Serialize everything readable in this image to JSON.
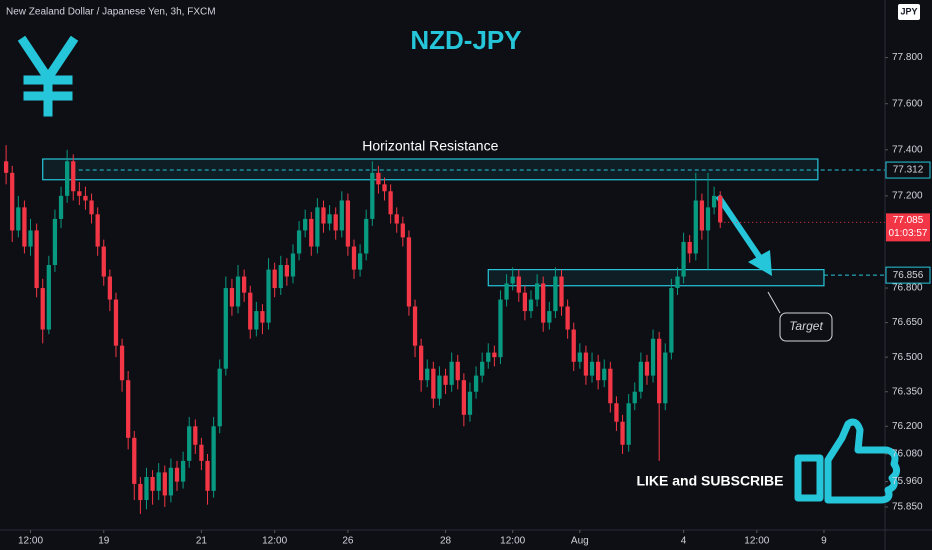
{
  "chart_data": {
    "type": "candlestick",
    "title": "NZD-JPY",
    "symbol_info": "New Zealand Dollar / Japanese Yen, 3h, FXCM",
    "currency": "JPY",
    "up_color": "#089981",
    "down_color": "#f23645",
    "accent_color": "#26c6da",
    "grid": false,
    "xlim": [
      -1,
      144
    ],
    "ylim": [
      75.75,
      78.05
    ],
    "yticks": [
      {
        "value": 77.8,
        "label": "77.800"
      },
      {
        "value": 77.6,
        "label": "77.600"
      },
      {
        "value": 77.4,
        "label": "77.400"
      },
      {
        "value": 77.2,
        "label": "77.200"
      },
      {
        "value": 76.8,
        "label": "76.800"
      },
      {
        "value": 76.65,
        "label": "76.650"
      },
      {
        "value": 76.5,
        "label": "76.500"
      },
      {
        "value": 76.35,
        "label": "76.350"
      },
      {
        "value": 76.2,
        "label": "76.200"
      },
      {
        "value": 76.08,
        "label": "76.080"
      },
      {
        "value": 75.96,
        "label": "75.960"
      },
      {
        "value": 75.85,
        "label": "75.850"
      }
    ],
    "xticks": [
      {
        "value": 4,
        "label": "12:00"
      },
      {
        "value": 16,
        "label": "19"
      },
      {
        "value": 32,
        "label": "21"
      },
      {
        "value": 44,
        "label": "12:00"
      },
      {
        "value": 56,
        "label": "26"
      },
      {
        "value": 72,
        "label": "28"
      },
      {
        "value": 83,
        "label": "12:00"
      },
      {
        "value": 94,
        "label": "Aug"
      },
      {
        "value": 111,
        "label": "4"
      },
      {
        "value": 123,
        "label": "12:00"
      },
      {
        "value": 134,
        "label": "9"
      }
    ],
    "x": [
      0,
      1,
      2,
      3,
      4,
      5,
      6,
      7,
      8,
      9,
      10,
      11,
      12,
      13,
      14,
      15,
      16,
      17,
      18,
      19,
      20,
      21,
      22,
      23,
      24,
      25,
      26,
      27,
      28,
      29,
      30,
      31,
      32,
      33,
      34,
      35,
      36,
      37,
      38,
      39,
      40,
      41,
      42,
      43,
      44,
      45,
      46,
      47,
      48,
      49,
      50,
      51,
      52,
      53,
      54,
      55,
      56,
      57,
      58,
      59,
      60,
      61,
      62,
      63,
      64,
      65,
      66,
      67,
      68,
      69,
      70,
      71,
      72,
      73,
      74,
      75,
      76,
      77,
      78,
      79,
      80,
      81,
      82,
      83,
      84,
      85,
      86,
      87,
      88,
      89,
      90,
      91,
      92,
      93,
      94,
      95,
      96,
      97,
      98,
      99,
      100,
      101,
      102,
      103,
      104,
      105,
      106,
      107,
      108,
      109,
      110,
      111,
      112,
      113,
      114,
      115,
      116,
      117
    ],
    "ohlc": [
      [
        77.35,
        77.42,
        77.25,
        77.3
      ],
      [
        77.3,
        77.33,
        77.0,
        77.05
      ],
      [
        77.05,
        77.2,
        77.02,
        77.15
      ],
      [
        77.15,
        77.18,
        76.95,
        76.98
      ],
      [
        76.98,
        77.1,
        76.94,
        77.05
      ],
      [
        77.05,
        77.08,
        76.76,
        76.8
      ],
      [
        76.8,
        76.84,
        76.56,
        76.62
      ],
      [
        76.62,
        76.94,
        76.6,
        76.9
      ],
      [
        76.9,
        77.14,
        76.87,
        77.1
      ],
      [
        77.1,
        77.24,
        77.06,
        77.2
      ],
      [
        77.2,
        77.4,
        77.17,
        77.35
      ],
      [
        77.35,
        77.38,
        77.18,
        77.22
      ],
      [
        77.22,
        77.26,
        77.16,
        77.2
      ],
      [
        77.2,
        77.24,
        77.14,
        77.18
      ],
      [
        77.18,
        77.21,
        77.08,
        77.12
      ],
      [
        77.12,
        77.15,
        76.94,
        76.98
      ],
      [
        76.98,
        77.01,
        76.81,
        76.85
      ],
      [
        76.85,
        76.88,
        76.7,
        76.75
      ],
      [
        76.75,
        76.78,
        76.5,
        76.55
      ],
      [
        76.55,
        76.58,
        76.35,
        76.4
      ],
      [
        76.4,
        76.44,
        76.1,
        76.15
      ],
      [
        76.15,
        76.18,
        75.88,
        75.95
      ],
      [
        75.95,
        75.98,
        75.82,
        75.88
      ],
      [
        75.88,
        76.02,
        75.84,
        75.98
      ],
      [
        75.98,
        76.01,
        75.86,
        75.92
      ],
      [
        75.92,
        76.04,
        75.88,
        76.0
      ],
      [
        76.0,
        76.03,
        75.85,
        75.9
      ],
      [
        75.9,
        76.06,
        75.87,
        76.02
      ],
      [
        76.02,
        76.05,
        75.92,
        75.96
      ],
      [
        75.96,
        76.09,
        75.93,
        76.05
      ],
      [
        76.05,
        76.24,
        76.02,
        76.2
      ],
      [
        76.2,
        76.23,
        76.08,
        76.12
      ],
      [
        76.12,
        76.15,
        76.01,
        76.05
      ],
      [
        76.05,
        76.08,
        75.86,
        75.92
      ],
      [
        75.92,
        76.24,
        75.89,
        76.2
      ],
      [
        76.2,
        76.49,
        76.17,
        76.45
      ],
      [
        76.45,
        76.85,
        76.42,
        76.8
      ],
      [
        76.8,
        76.84,
        76.68,
        76.72
      ],
      [
        76.72,
        76.9,
        76.69,
        76.85
      ],
      [
        76.85,
        76.88,
        76.74,
        76.78
      ],
      [
        76.78,
        76.81,
        76.58,
        76.62
      ],
      [
        76.62,
        76.74,
        76.59,
        76.7
      ],
      [
        76.7,
        76.73,
        76.6,
        76.65
      ],
      [
        76.65,
        76.93,
        76.62,
        76.88
      ],
      [
        76.88,
        76.91,
        76.76,
        76.8
      ],
      [
        76.8,
        76.94,
        76.77,
        76.9
      ],
      [
        76.9,
        76.93,
        76.81,
        76.85
      ],
      [
        76.85,
        76.99,
        76.82,
        76.95
      ],
      [
        76.95,
        77.09,
        76.92,
        77.05
      ],
      [
        77.05,
        77.14,
        77.02,
        77.1
      ],
      [
        77.1,
        77.13,
        76.94,
        76.98
      ],
      [
        76.98,
        77.19,
        76.95,
        77.15
      ],
      [
        77.15,
        77.18,
        77.04,
        77.08
      ],
      [
        77.08,
        77.16,
        77.05,
        77.12
      ],
      [
        77.12,
        77.15,
        77.01,
        77.05
      ],
      [
        77.05,
        77.22,
        77.02,
        77.18
      ],
      [
        77.18,
        77.21,
        76.94,
        76.98
      ],
      [
        76.98,
        77.01,
        76.84,
        76.88
      ],
      [
        76.88,
        76.99,
        76.85,
        76.95
      ],
      [
        76.95,
        77.14,
        76.92,
        77.1
      ],
      [
        77.1,
        77.35,
        77.07,
        77.3
      ],
      [
        77.3,
        77.33,
        77.21,
        77.25
      ],
      [
        77.25,
        77.28,
        77.18,
        77.22
      ],
      [
        77.22,
        77.25,
        77.08,
        77.12
      ],
      [
        77.12,
        77.15,
        77.04,
        77.08
      ],
      [
        77.08,
        77.11,
        76.98,
        77.02
      ],
      [
        77.02,
        77.05,
        76.68,
        76.72
      ],
      [
        76.72,
        76.75,
        76.5,
        76.55
      ],
      [
        76.55,
        76.58,
        76.35,
        76.4
      ],
      [
        76.4,
        76.49,
        76.37,
        76.45
      ],
      [
        76.45,
        76.48,
        76.28,
        76.32
      ],
      [
        76.32,
        76.46,
        76.29,
        76.42
      ],
      [
        76.42,
        76.45,
        76.34,
        76.38
      ],
      [
        76.38,
        76.52,
        76.35,
        76.48
      ],
      [
        76.48,
        76.51,
        76.36,
        76.4
      ],
      [
        76.4,
        76.43,
        76.2,
        76.25
      ],
      [
        76.25,
        76.39,
        76.22,
        76.35
      ],
      [
        76.35,
        76.46,
        76.32,
        76.42
      ],
      [
        76.42,
        76.52,
        76.39,
        76.48
      ],
      [
        76.48,
        76.56,
        76.45,
        76.52
      ],
      [
        76.52,
        76.55,
        76.46,
        76.5
      ],
      [
        76.5,
        76.79,
        76.47,
        76.75
      ],
      [
        76.75,
        76.86,
        76.72,
        76.82
      ],
      [
        76.82,
        76.89,
        76.79,
        76.85
      ],
      [
        76.85,
        76.88,
        76.74,
        76.78
      ],
      [
        76.78,
        76.81,
        76.66,
        76.7
      ],
      [
        76.7,
        76.79,
        76.67,
        76.75
      ],
      [
        76.75,
        76.86,
        76.72,
        76.82
      ],
      [
        76.82,
        76.85,
        76.61,
        76.65
      ],
      [
        76.65,
        76.74,
        76.62,
        76.7
      ],
      [
        76.7,
        76.89,
        76.67,
        76.85
      ],
      [
        76.85,
        76.88,
        76.68,
        76.72
      ],
      [
        76.72,
        76.75,
        76.58,
        76.62
      ],
      [
        76.62,
        76.65,
        76.44,
        76.48
      ],
      [
        76.48,
        76.56,
        76.45,
        76.52
      ],
      [
        76.52,
        76.55,
        76.38,
        76.42
      ],
      [
        76.42,
        76.52,
        76.39,
        76.48
      ],
      [
        76.48,
        76.51,
        76.36,
        76.4
      ],
      [
        76.4,
        76.49,
        76.37,
        76.45
      ],
      [
        76.45,
        76.48,
        76.26,
        76.3
      ],
      [
        76.3,
        76.33,
        76.18,
        76.22
      ],
      [
        76.22,
        76.25,
        76.08,
        76.12
      ],
      [
        76.12,
        76.34,
        76.09,
        76.3
      ],
      [
        76.3,
        76.39,
        76.27,
        76.35
      ],
      [
        76.35,
        76.52,
        76.32,
        76.48
      ],
      [
        76.48,
        76.51,
        76.38,
        76.42
      ],
      [
        76.42,
        76.62,
        76.39,
        76.58
      ],
      [
        76.58,
        76.61,
        76.05,
        76.3
      ],
      [
        76.3,
        76.56,
        76.27,
        76.52
      ],
      [
        76.52,
        76.84,
        76.49,
        76.8
      ],
      [
        76.8,
        76.89,
        76.77,
        76.85
      ],
      [
        76.85,
        77.04,
        76.82,
        77.0
      ],
      [
        77.0,
        77.03,
        76.91,
        76.95
      ],
      [
        76.95,
        77.3,
        76.92,
        77.18
      ],
      [
        77.18,
        77.21,
        77.01,
        77.05
      ],
      [
        77.05,
        77.3,
        76.88,
        77.15
      ],
      [
        77.15,
        77.24,
        77.12,
        77.2
      ],
      [
        77.2,
        77.22,
        77.06,
        77.085
      ]
    ],
    "zones": [
      {
        "label": "Horizontal Resistance",
        "x": [
          6,
          133
        ],
        "low": 77.27,
        "high": 77.36,
        "level": 77.312
      },
      {
        "label": "Target",
        "x": [
          79,
          134
        ],
        "low": 76.81,
        "high": 76.88,
        "level": 76.856
      }
    ],
    "last_price": 77.085,
    "countdown": "01:03:57",
    "call_to_action": "LIKE and SUBSCRIBE"
  }
}
